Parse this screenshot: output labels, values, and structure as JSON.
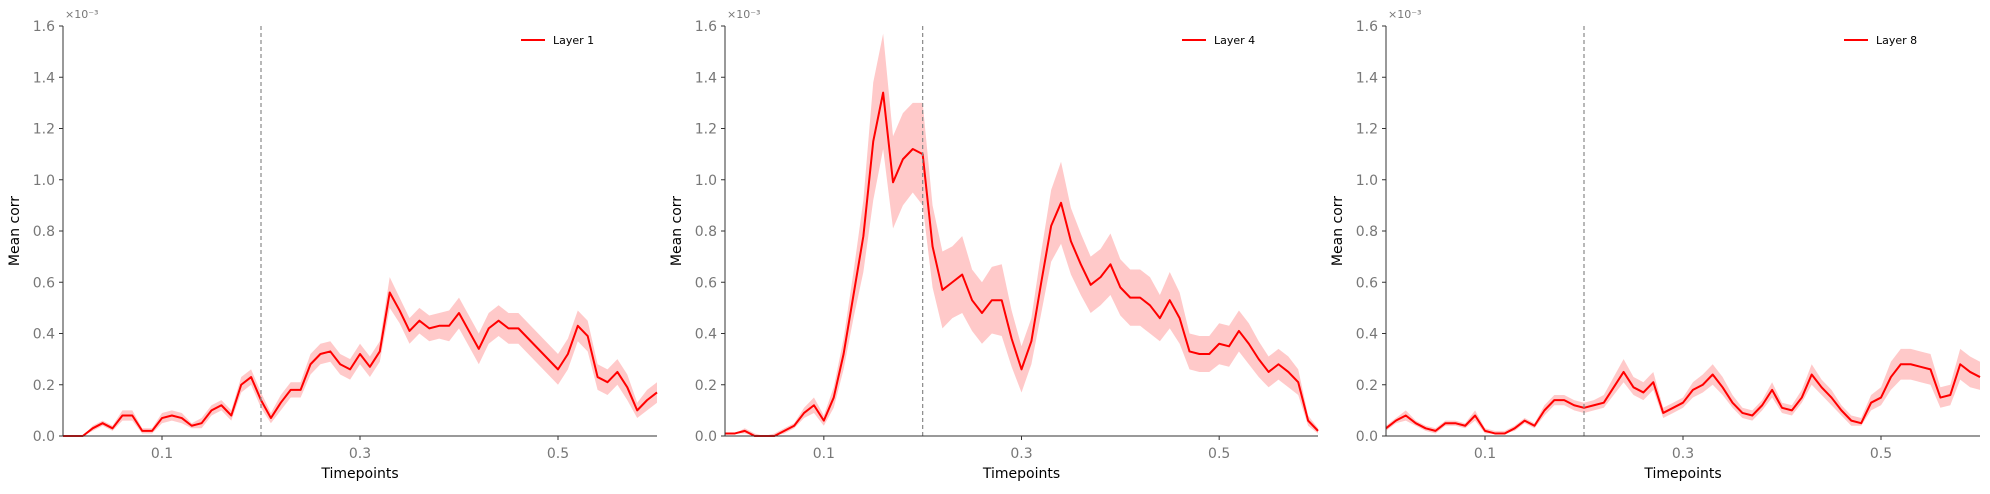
{
  "chart_data": [
    {
      "type": "line",
      "xlabel": "Timepoints",
      "ylabel": "Mean corr",
      "y_multiplier_label": "×10⁻³",
      "xlim": [
        0.0,
        0.6
      ],
      "ylim": [
        0.0,
        1.6
      ],
      "xticks": [
        0.1,
        0.3,
        0.5
      ],
      "yticks": [
        0.0,
        0.2,
        0.4,
        0.6,
        0.8,
        1.0,
        1.2,
        1.4,
        1.6
      ],
      "xtick_labels": [
        "0.1",
        "0.3",
        "0.5"
      ],
      "ytick_labels": [
        "0.0",
        "0.2",
        "0.4",
        "0.6",
        "0.8",
        "1.0",
        "1.2",
        "1.4",
        "1.6"
      ],
      "vline_x": 0.2,
      "legend": "top-right",
      "series": [
        {
          "name": "Layer 1",
          "color": "#ff0000",
          "band_color": "#ffc0c0",
          "x": [
            0.0,
            0.01,
            0.02,
            0.03,
            0.04,
            0.05,
            0.06,
            0.07,
            0.08,
            0.09,
            0.1,
            0.11,
            0.12,
            0.13,
            0.14,
            0.15,
            0.16,
            0.17,
            0.18,
            0.19,
            0.2,
            0.21,
            0.22,
            0.23,
            0.24,
            0.25,
            0.26,
            0.27,
            0.28,
            0.29,
            0.3,
            0.31,
            0.32,
            0.33,
            0.34,
            0.35,
            0.36,
            0.37,
            0.38,
            0.39,
            0.4,
            0.41,
            0.42,
            0.43,
            0.44,
            0.45,
            0.46,
            0.47,
            0.48,
            0.49,
            0.5,
            0.51,
            0.52,
            0.53,
            0.54,
            0.55,
            0.56,
            0.57,
            0.58,
            0.59,
            0.6
          ],
          "mean": [
            0.0,
            0.0,
            0.0,
            0.03,
            0.05,
            0.03,
            0.08,
            0.08,
            0.02,
            0.02,
            0.07,
            0.08,
            0.07,
            0.04,
            0.05,
            0.1,
            0.12,
            0.08,
            0.2,
            0.23,
            0.14,
            0.07,
            0.13,
            0.18,
            0.18,
            0.28,
            0.32,
            0.33,
            0.28,
            0.26,
            0.32,
            0.27,
            0.33,
            0.56,
            0.49,
            0.41,
            0.45,
            0.42,
            0.43,
            0.43,
            0.48,
            0.41,
            0.34,
            0.42,
            0.45,
            0.42,
            0.42,
            0.38,
            0.34,
            0.3,
            0.26,
            0.32,
            0.43,
            0.39,
            0.23,
            0.21,
            0.25,
            0.19,
            0.1,
            0.14,
            0.17
          ],
          "lower": [
            0.0,
            0.0,
            0.0,
            0.02,
            0.04,
            0.02,
            0.06,
            0.06,
            0.01,
            0.01,
            0.05,
            0.06,
            0.05,
            0.03,
            0.03,
            0.08,
            0.1,
            0.06,
            0.17,
            0.2,
            0.11,
            0.05,
            0.1,
            0.15,
            0.15,
            0.24,
            0.28,
            0.29,
            0.24,
            0.22,
            0.28,
            0.23,
            0.29,
            0.5,
            0.44,
            0.36,
            0.4,
            0.37,
            0.38,
            0.37,
            0.42,
            0.35,
            0.28,
            0.36,
            0.39,
            0.36,
            0.36,
            0.32,
            0.28,
            0.24,
            0.2,
            0.26,
            0.37,
            0.33,
            0.18,
            0.16,
            0.2,
            0.14,
            0.07,
            0.1,
            0.13
          ],
          "upper": [
            0.0,
            0.0,
            0.0,
            0.04,
            0.06,
            0.04,
            0.1,
            0.1,
            0.03,
            0.03,
            0.09,
            0.1,
            0.09,
            0.05,
            0.07,
            0.12,
            0.14,
            0.1,
            0.23,
            0.26,
            0.17,
            0.09,
            0.16,
            0.21,
            0.21,
            0.32,
            0.36,
            0.37,
            0.32,
            0.3,
            0.36,
            0.31,
            0.37,
            0.62,
            0.54,
            0.46,
            0.5,
            0.47,
            0.48,
            0.49,
            0.54,
            0.47,
            0.4,
            0.48,
            0.51,
            0.48,
            0.48,
            0.44,
            0.4,
            0.36,
            0.32,
            0.38,
            0.49,
            0.45,
            0.28,
            0.26,
            0.3,
            0.24,
            0.13,
            0.18,
            0.21
          ]
        }
      ]
    },
    {
      "type": "line",
      "xlabel": "Timepoints",
      "ylabel": "Mean corr",
      "y_multiplier_label": "×10⁻³",
      "xlim": [
        0.0,
        0.6
      ],
      "ylim": [
        0.0,
        1.6
      ],
      "xticks": [
        0.1,
        0.3,
        0.5
      ],
      "yticks": [
        0.0,
        0.2,
        0.4,
        0.6,
        0.8,
        1.0,
        1.2,
        1.4,
        1.6
      ],
      "xtick_labels": [
        "0.1",
        "0.3",
        "0.5"
      ],
      "ytick_labels": [
        "0.0",
        "0.2",
        "0.4",
        "0.6",
        "0.8",
        "1.0",
        "1.2",
        "1.4",
        "1.6"
      ],
      "vline_x": 0.2,
      "legend": "top-right",
      "series": [
        {
          "name": "Layer 4",
          "color": "#ff0000",
          "band_color": "#ffc0c0",
          "x": [
            0.0,
            0.01,
            0.02,
            0.03,
            0.04,
            0.05,
            0.06,
            0.07,
            0.08,
            0.09,
            0.1,
            0.11,
            0.12,
            0.13,
            0.14,
            0.15,
            0.16,
            0.17,
            0.18,
            0.19,
            0.2,
            0.21,
            0.22,
            0.23,
            0.24,
            0.25,
            0.26,
            0.27,
            0.28,
            0.29,
            0.3,
            0.31,
            0.32,
            0.33,
            0.34,
            0.35,
            0.36,
            0.37,
            0.38,
            0.39,
            0.4,
            0.41,
            0.42,
            0.43,
            0.44,
            0.45,
            0.46,
            0.47,
            0.48,
            0.49,
            0.5,
            0.51,
            0.52,
            0.53,
            0.54,
            0.55,
            0.56,
            0.57,
            0.58,
            0.59,
            0.6
          ],
          "mean": [
            0.01,
            0.01,
            0.02,
            0.0,
            0.0,
            0.0,
            0.02,
            0.04,
            0.09,
            0.12,
            0.06,
            0.15,
            0.32,
            0.55,
            0.78,
            1.15,
            1.34,
            0.99,
            1.08,
            1.12,
            1.1,
            0.74,
            0.57,
            0.6,
            0.63,
            0.53,
            0.48,
            0.53,
            0.53,
            0.38,
            0.26,
            0.37,
            0.6,
            0.82,
            0.91,
            0.76,
            0.67,
            0.59,
            0.62,
            0.67,
            0.58,
            0.54,
            0.54,
            0.51,
            0.46,
            0.53,
            0.46,
            0.33,
            0.32,
            0.32,
            0.36,
            0.35,
            0.41,
            0.36,
            0.3,
            0.25,
            0.28,
            0.25,
            0.21,
            0.06,
            0.02
          ],
          "lower": [
            0.01,
            0.01,
            0.01,
            0.0,
            0.0,
            0.0,
            0.01,
            0.03,
            0.07,
            0.09,
            0.04,
            0.11,
            0.26,
            0.46,
            0.64,
            0.92,
            1.12,
            0.81,
            0.9,
            0.95,
            0.9,
            0.58,
            0.42,
            0.46,
            0.48,
            0.41,
            0.36,
            0.4,
            0.39,
            0.27,
            0.17,
            0.28,
            0.48,
            0.68,
            0.75,
            0.63,
            0.55,
            0.48,
            0.51,
            0.55,
            0.47,
            0.43,
            0.43,
            0.4,
            0.37,
            0.42,
            0.36,
            0.26,
            0.25,
            0.25,
            0.28,
            0.27,
            0.33,
            0.28,
            0.23,
            0.19,
            0.22,
            0.19,
            0.16,
            0.04,
            0.01
          ],
          "upper": [
            0.01,
            0.01,
            0.03,
            0.01,
            0.0,
            0.01,
            0.03,
            0.05,
            0.11,
            0.15,
            0.08,
            0.19,
            0.38,
            0.64,
            0.92,
            1.38,
            1.57,
            1.17,
            1.26,
            1.3,
            1.3,
            0.9,
            0.72,
            0.74,
            0.78,
            0.65,
            0.6,
            0.66,
            0.67,
            0.49,
            0.35,
            0.46,
            0.72,
            0.96,
            1.07,
            0.89,
            0.79,
            0.7,
            0.73,
            0.79,
            0.69,
            0.65,
            0.65,
            0.62,
            0.55,
            0.64,
            0.56,
            0.4,
            0.39,
            0.39,
            0.44,
            0.43,
            0.49,
            0.44,
            0.37,
            0.31,
            0.34,
            0.31,
            0.26,
            0.08,
            0.03
          ]
        }
      ]
    },
    {
      "type": "line",
      "xlabel": "Timepoints",
      "ylabel": "Mean corr",
      "y_multiplier_label": "×10⁻³",
      "xlim": [
        0.0,
        0.6
      ],
      "ylim": [
        0.0,
        1.6
      ],
      "xticks": [
        0.1,
        0.3,
        0.5
      ],
      "yticks": [
        0.0,
        0.2,
        0.4,
        0.6,
        0.8,
        1.0,
        1.2,
        1.4,
        1.6
      ],
      "xtick_labels": [
        "0.1",
        "0.3",
        "0.5"
      ],
      "ytick_labels": [
        "0.0",
        "0.2",
        "0.4",
        "0.6",
        "0.8",
        "1.0",
        "1.2",
        "1.4",
        "1.6"
      ],
      "vline_x": 0.2,
      "legend": "top-right",
      "series": [
        {
          "name": "Layer 8",
          "color": "#ff0000",
          "band_color": "#ffc0c0",
          "x": [
            0.0,
            0.01,
            0.02,
            0.03,
            0.04,
            0.05,
            0.06,
            0.07,
            0.08,
            0.09,
            0.1,
            0.11,
            0.12,
            0.13,
            0.14,
            0.15,
            0.16,
            0.17,
            0.18,
            0.19,
            0.2,
            0.21,
            0.22,
            0.23,
            0.24,
            0.25,
            0.26,
            0.27,
            0.28,
            0.29,
            0.3,
            0.31,
            0.32,
            0.33,
            0.34,
            0.35,
            0.36,
            0.37,
            0.38,
            0.39,
            0.4,
            0.41,
            0.42,
            0.43,
            0.44,
            0.45,
            0.46,
            0.47,
            0.48,
            0.49,
            0.5,
            0.51,
            0.52,
            0.53,
            0.54,
            0.55,
            0.56,
            0.57,
            0.58,
            0.59,
            0.6
          ],
          "mean": [
            0.03,
            0.06,
            0.08,
            0.05,
            0.03,
            0.02,
            0.05,
            0.05,
            0.04,
            0.08,
            0.02,
            0.01,
            0.01,
            0.03,
            0.06,
            0.04,
            0.1,
            0.14,
            0.14,
            0.12,
            0.11,
            0.12,
            0.13,
            0.19,
            0.25,
            0.19,
            0.17,
            0.21,
            0.09,
            0.11,
            0.13,
            0.18,
            0.2,
            0.24,
            0.19,
            0.13,
            0.09,
            0.08,
            0.12,
            0.18,
            0.11,
            0.1,
            0.15,
            0.24,
            0.19,
            0.15,
            0.1,
            0.06,
            0.05,
            0.13,
            0.15,
            0.23,
            0.28,
            0.28,
            0.27,
            0.26,
            0.15,
            0.16,
            0.28,
            0.25,
            0.23
          ],
          "lower": [
            0.02,
            0.05,
            0.06,
            0.04,
            0.02,
            0.01,
            0.04,
            0.04,
            0.03,
            0.06,
            0.01,
            0.01,
            0.01,
            0.02,
            0.05,
            0.03,
            0.08,
            0.12,
            0.12,
            0.1,
            0.09,
            0.1,
            0.11,
            0.16,
            0.21,
            0.16,
            0.14,
            0.18,
            0.07,
            0.09,
            0.11,
            0.15,
            0.17,
            0.2,
            0.16,
            0.11,
            0.07,
            0.06,
            0.1,
            0.15,
            0.09,
            0.08,
            0.13,
            0.2,
            0.16,
            0.12,
            0.08,
            0.04,
            0.04,
            0.1,
            0.12,
            0.18,
            0.22,
            0.22,
            0.21,
            0.2,
            0.11,
            0.12,
            0.22,
            0.19,
            0.18
          ],
          "upper": [
            0.04,
            0.07,
            0.1,
            0.06,
            0.04,
            0.03,
            0.06,
            0.06,
            0.05,
            0.1,
            0.03,
            0.02,
            0.02,
            0.04,
            0.07,
            0.05,
            0.12,
            0.16,
            0.16,
            0.14,
            0.13,
            0.14,
            0.16,
            0.23,
            0.3,
            0.23,
            0.21,
            0.25,
            0.11,
            0.13,
            0.15,
            0.21,
            0.24,
            0.28,
            0.23,
            0.16,
            0.11,
            0.1,
            0.14,
            0.21,
            0.13,
            0.12,
            0.18,
            0.28,
            0.22,
            0.18,
            0.12,
            0.08,
            0.07,
            0.16,
            0.19,
            0.29,
            0.34,
            0.34,
            0.33,
            0.32,
            0.19,
            0.2,
            0.34,
            0.31,
            0.29
          ]
        }
      ]
    }
  ]
}
